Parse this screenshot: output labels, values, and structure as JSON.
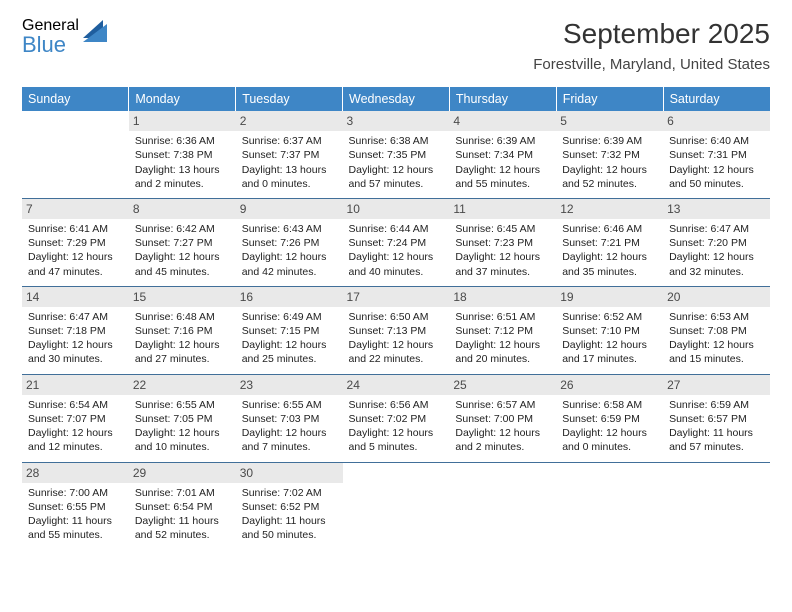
{
  "logo": {
    "word1": "General",
    "word2": "Blue"
  },
  "title": "September 2025",
  "location": "Forestville, Maryland, United States",
  "headers": [
    "Sunday",
    "Monday",
    "Tuesday",
    "Wednesday",
    "Thursday",
    "Friday",
    "Saturday"
  ],
  "header_bg": "#3e86c6",
  "header_fg": "#ffffff",
  "daynum_bg": "#e9e9e9",
  "border_color": "#416f99",
  "month_fontsize": 28,
  "location_fontsize": 15,
  "cell_fontsize": 10.5,
  "weeks": [
    [
      null,
      {
        "n": "1",
        "sr": "Sunrise: 6:36 AM",
        "ss": "Sunset: 7:38 PM",
        "d1": "Daylight: 13 hours",
        "d2": "and 2 minutes."
      },
      {
        "n": "2",
        "sr": "Sunrise: 6:37 AM",
        "ss": "Sunset: 7:37 PM",
        "d1": "Daylight: 13 hours",
        "d2": "and 0 minutes."
      },
      {
        "n": "3",
        "sr": "Sunrise: 6:38 AM",
        "ss": "Sunset: 7:35 PM",
        "d1": "Daylight: 12 hours",
        "d2": "and 57 minutes."
      },
      {
        "n": "4",
        "sr": "Sunrise: 6:39 AM",
        "ss": "Sunset: 7:34 PM",
        "d1": "Daylight: 12 hours",
        "d2": "and 55 minutes."
      },
      {
        "n": "5",
        "sr": "Sunrise: 6:39 AM",
        "ss": "Sunset: 7:32 PM",
        "d1": "Daylight: 12 hours",
        "d2": "and 52 minutes."
      },
      {
        "n": "6",
        "sr": "Sunrise: 6:40 AM",
        "ss": "Sunset: 7:31 PM",
        "d1": "Daylight: 12 hours",
        "d2": "and 50 minutes."
      }
    ],
    [
      {
        "n": "7",
        "sr": "Sunrise: 6:41 AM",
        "ss": "Sunset: 7:29 PM",
        "d1": "Daylight: 12 hours",
        "d2": "and 47 minutes."
      },
      {
        "n": "8",
        "sr": "Sunrise: 6:42 AM",
        "ss": "Sunset: 7:27 PM",
        "d1": "Daylight: 12 hours",
        "d2": "and 45 minutes."
      },
      {
        "n": "9",
        "sr": "Sunrise: 6:43 AM",
        "ss": "Sunset: 7:26 PM",
        "d1": "Daylight: 12 hours",
        "d2": "and 42 minutes."
      },
      {
        "n": "10",
        "sr": "Sunrise: 6:44 AM",
        "ss": "Sunset: 7:24 PM",
        "d1": "Daylight: 12 hours",
        "d2": "and 40 minutes."
      },
      {
        "n": "11",
        "sr": "Sunrise: 6:45 AM",
        "ss": "Sunset: 7:23 PM",
        "d1": "Daylight: 12 hours",
        "d2": "and 37 minutes."
      },
      {
        "n": "12",
        "sr": "Sunrise: 6:46 AM",
        "ss": "Sunset: 7:21 PM",
        "d1": "Daylight: 12 hours",
        "d2": "and 35 minutes."
      },
      {
        "n": "13",
        "sr": "Sunrise: 6:47 AM",
        "ss": "Sunset: 7:20 PM",
        "d1": "Daylight: 12 hours",
        "d2": "and 32 minutes."
      }
    ],
    [
      {
        "n": "14",
        "sr": "Sunrise: 6:47 AM",
        "ss": "Sunset: 7:18 PM",
        "d1": "Daylight: 12 hours",
        "d2": "and 30 minutes."
      },
      {
        "n": "15",
        "sr": "Sunrise: 6:48 AM",
        "ss": "Sunset: 7:16 PM",
        "d1": "Daylight: 12 hours",
        "d2": "and 27 minutes."
      },
      {
        "n": "16",
        "sr": "Sunrise: 6:49 AM",
        "ss": "Sunset: 7:15 PM",
        "d1": "Daylight: 12 hours",
        "d2": "and 25 minutes."
      },
      {
        "n": "17",
        "sr": "Sunrise: 6:50 AM",
        "ss": "Sunset: 7:13 PM",
        "d1": "Daylight: 12 hours",
        "d2": "and 22 minutes."
      },
      {
        "n": "18",
        "sr": "Sunrise: 6:51 AM",
        "ss": "Sunset: 7:12 PM",
        "d1": "Daylight: 12 hours",
        "d2": "and 20 minutes."
      },
      {
        "n": "19",
        "sr": "Sunrise: 6:52 AM",
        "ss": "Sunset: 7:10 PM",
        "d1": "Daylight: 12 hours",
        "d2": "and 17 minutes."
      },
      {
        "n": "20",
        "sr": "Sunrise: 6:53 AM",
        "ss": "Sunset: 7:08 PM",
        "d1": "Daylight: 12 hours",
        "d2": "and 15 minutes."
      }
    ],
    [
      {
        "n": "21",
        "sr": "Sunrise: 6:54 AM",
        "ss": "Sunset: 7:07 PM",
        "d1": "Daylight: 12 hours",
        "d2": "and 12 minutes."
      },
      {
        "n": "22",
        "sr": "Sunrise: 6:55 AM",
        "ss": "Sunset: 7:05 PM",
        "d1": "Daylight: 12 hours",
        "d2": "and 10 minutes."
      },
      {
        "n": "23",
        "sr": "Sunrise: 6:55 AM",
        "ss": "Sunset: 7:03 PM",
        "d1": "Daylight: 12 hours",
        "d2": "and 7 minutes."
      },
      {
        "n": "24",
        "sr": "Sunrise: 6:56 AM",
        "ss": "Sunset: 7:02 PM",
        "d1": "Daylight: 12 hours",
        "d2": "and 5 minutes."
      },
      {
        "n": "25",
        "sr": "Sunrise: 6:57 AM",
        "ss": "Sunset: 7:00 PM",
        "d1": "Daylight: 12 hours",
        "d2": "and 2 minutes."
      },
      {
        "n": "26",
        "sr": "Sunrise: 6:58 AM",
        "ss": "Sunset: 6:59 PM",
        "d1": "Daylight: 12 hours",
        "d2": "and 0 minutes."
      },
      {
        "n": "27",
        "sr": "Sunrise: 6:59 AM",
        "ss": "Sunset: 6:57 PM",
        "d1": "Daylight: 11 hours",
        "d2": "and 57 minutes."
      }
    ],
    [
      {
        "n": "28",
        "sr": "Sunrise: 7:00 AM",
        "ss": "Sunset: 6:55 PM",
        "d1": "Daylight: 11 hours",
        "d2": "and 55 minutes."
      },
      {
        "n": "29",
        "sr": "Sunrise: 7:01 AM",
        "ss": "Sunset: 6:54 PM",
        "d1": "Daylight: 11 hours",
        "d2": "and 52 minutes."
      },
      {
        "n": "30",
        "sr": "Sunrise: 7:02 AM",
        "ss": "Sunset: 6:52 PM",
        "d1": "Daylight: 11 hours",
        "d2": "and 50 minutes."
      },
      null,
      null,
      null,
      null
    ]
  ]
}
